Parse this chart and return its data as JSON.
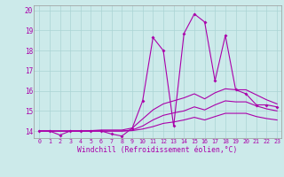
{
  "xlabel": "Windchill (Refroidissement éolien,°C)",
  "background_color": "#cceaea",
  "line_color": "#aa00aa",
  "grid_color": "#aad4d4",
  "xlim": [
    -0.5,
    23.4
  ],
  "ylim": [
    13.65,
    20.25
  ],
  "yticks": [
    14,
    15,
    16,
    17,
    18,
    19,
    20
  ],
  "xtick_labels": [
    "0",
    "1",
    "2",
    "3",
    "4",
    "5",
    "6",
    "7",
    "8",
    "9",
    "10",
    "11",
    "12",
    "13",
    "14",
    "15",
    "16",
    "17",
    "18",
    "19",
    "20",
    "21",
    "22",
    "23"
  ],
  "line1_x": [
    0,
    1,
    2,
    3,
    4,
    5,
    6,
    7,
    8,
    9,
    10,
    11,
    12,
    13,
    14,
    15,
    16,
    17,
    18,
    19,
    20,
    21,
    22,
    23
  ],
  "line1_y": [
    14.0,
    14.0,
    13.8,
    14.0,
    14.0,
    14.0,
    14.0,
    13.85,
    13.75,
    14.15,
    15.5,
    18.65,
    18.0,
    14.25,
    18.85,
    19.82,
    19.42,
    16.5,
    18.75,
    16.05,
    15.85,
    15.3,
    15.3,
    15.2
  ],
  "line2_x": [
    0,
    1,
    2,
    3,
    4,
    5,
    6,
    7,
    8,
    9,
    10,
    11,
    12,
    13,
    14,
    15,
    16,
    17,
    18,
    19,
    20,
    21,
    22,
    23
  ],
  "line2_y": [
    14.0,
    14.0,
    14.0,
    14.0,
    14.0,
    14.02,
    14.05,
    14.05,
    14.05,
    14.15,
    14.6,
    15.05,
    15.35,
    15.5,
    15.65,
    15.85,
    15.6,
    15.9,
    16.1,
    16.05,
    16.05,
    15.8,
    15.55,
    15.35
  ],
  "line3_x": [
    0,
    1,
    2,
    3,
    4,
    5,
    6,
    7,
    8,
    9,
    10,
    11,
    12,
    13,
    14,
    15,
    16,
    17,
    18,
    19,
    20,
    21,
    22,
    23
  ],
  "line3_y": [
    14.0,
    14.0,
    14.0,
    14.0,
    14.0,
    14.0,
    14.0,
    14.0,
    14.0,
    14.05,
    14.25,
    14.55,
    14.78,
    14.9,
    15.0,
    15.2,
    15.05,
    15.3,
    15.5,
    15.45,
    15.45,
    15.25,
    15.1,
    15.0
  ],
  "line4_x": [
    0,
    1,
    2,
    3,
    4,
    5,
    6,
    7,
    8,
    9,
    10,
    11,
    12,
    13,
    14,
    15,
    16,
    17,
    18,
    19,
    20,
    21,
    22,
    23
  ],
  "line4_y": [
    14.0,
    14.0,
    14.0,
    14.0,
    14.0,
    14.0,
    14.0,
    14.0,
    14.0,
    14.02,
    14.1,
    14.22,
    14.38,
    14.45,
    14.55,
    14.68,
    14.55,
    14.72,
    14.88,
    14.88,
    14.88,
    14.72,
    14.62,
    14.55
  ]
}
